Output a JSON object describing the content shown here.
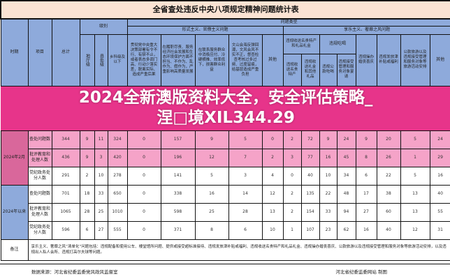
{
  "title": "全省查处违反中央八项规定精神问题统计表",
  "headers": {
    "period": "时期",
    "item": "项目",
    "total": "总计",
    "level": "级别",
    "problem_type": "问题类型",
    "formalism": "形式主义、官僚主义问题",
    "hedonism": "享乐主义、奢靡之风问题",
    "levels": [
      "地厅级",
      "县处级",
      "乡科级及以下"
    ],
    "formalism_cols": [
      "贯彻党中央重大决策部署有令不行、有禁不止，或者表态多调门高、行动少落实差，脱离实际、造成严重后果",
      "在履职尽责、服务经济社会发展和生态环境保护方面不担当、不作为、乱作为、假作为，严重影响高质量发展",
      "在联系服务群众中消极应付、冷硬横推、效率低下，损害群众利益",
      "文山会海反弹回潮，文风会风不实不正，督查检查考核过多过频、过度留痕，给基层造成严重负担",
      "其他"
    ],
    "gifts_group": "违规收送名贵特产和礼品礼金",
    "gifts_cols": [
      "违规收送名贵特产",
      "违规收送礼金和其他礼品"
    ],
    "dining_group": "违规吃喝",
    "dining_cols": [
      "违规公款吃喝",
      "违规接受管理和服务对象宴请"
    ],
    "hedonism_cols": [
      "违规操办婚丧喜庆",
      "违规发放津补贴或福利",
      "公款旅游以及违规接受管理和服务对象等旅游活动安排",
      "其他"
    ]
  },
  "periods": [
    {
      "label": "2024年2月",
      "rows": [
        {
          "item": "查处问题数",
          "values": [
            "344",
            "9",
            "11",
            "324",
            "0",
            "157",
            "9",
            "5",
            "0",
            "2",
            "72",
            "9",
            "24",
            "9",
            "20",
            "5",
            "24"
          ]
        },
        {
          "item": "批评教育和处理人数",
          "values": [
            "436",
            "9",
            "3",
            "420",
            "0",
            "196",
            "12",
            "7",
            "2",
            "3",
            "77",
            "16",
            "45",
            "8",
            "26",
            "1",
            "29"
          ]
        },
        {
          "item": "党纪政务处分人数",
          "values": [
            "291",
            "2",
            "10",
            "278",
            "0",
            "141",
            "5",
            "3",
            "4",
            "0",
            "40",
            "10",
            "34",
            "6",
            "22",
            "5",
            "16"
          ]
        }
      ]
    },
    {
      "label": "2024年以来",
      "rows": [
        {
          "item": "查处问题数",
          "values": [
            "701",
            "18",
            "33",
            "650",
            "0",
            "338",
            "16",
            "14",
            "12",
            "2",
            "135",
            "22",
            "48",
            "17",
            "38",
            "13",
            "40"
          ]
        },
        {
          "item": "批评教育和处理人数",
          "values": [
            "1065",
            "28",
            "25",
            "1010",
            "0",
            "598",
            "25",
            "28",
            "13",
            "2",
            "154",
            "33",
            "94",
            "27",
            "60",
            "13",
            "55"
          ]
        },
        {
          "item": "党纪政务处分人数",
          "values": [
            "596",
            "6",
            "27",
            "555",
            "0",
            "371",
            "8",
            "6",
            "10",
            "1",
            "107",
            "23",
            "62",
            "16",
            "40",
            "12",
            "31"
          ]
        }
      ]
    }
  ],
  "note": {
    "label": "备注",
    "text": "享乐主义、奢靡之风“清单化”问题包括：违规配备和使用公车、楼堂馆所问题、提供或接受超标准接待、违规发放津补贴或福利、违规收送名贵特产和礼品礼金、违规操办婚丧喜庆、公款旅游以及违规接受管理和服务对象等旅游活动安排，以及违规出入私人会所、违规打高尔夫球等问题。"
  },
  "footer": {
    "source": "数据来源：河北省纪委监委党风政风监督室",
    "credit": "河北省纪委监委网站 制图"
  },
  "overlay": {
    "line1": "2024全新澳版资料大全，安全评估策略_",
    "line2": "涅□境XIL344.29",
    "color": "#e7348a"
  }
}
